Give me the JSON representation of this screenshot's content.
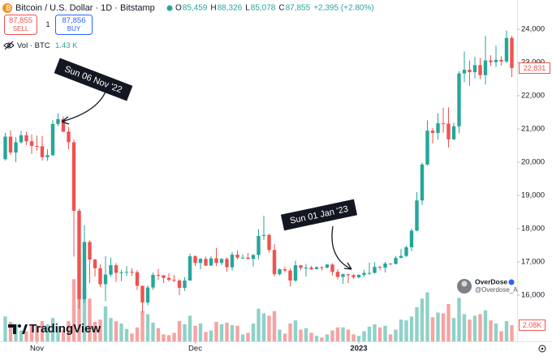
{
  "header": {
    "symbol": "Bitcoin / U.S. Dollar · 1D · Bitstamp",
    "ohlc": [
      {
        "label": "O",
        "value": "85,459"
      },
      {
        "label": "H",
        "value": "88,326"
      },
      {
        "label": "L",
        "value": "85,078"
      },
      {
        "label": "C",
        "value": "87,855"
      }
    ],
    "change": "+2,395 (+2.80%)",
    "sell": {
      "price": "87,855",
      "label": "SELL"
    },
    "spread": "1",
    "buy": {
      "price": "87,856",
      "label": "BUY"
    },
    "volume_label": "Vol · BTC",
    "volume_value": "1.43 K"
  },
  "watermark": "TradingView",
  "author": {
    "name": "OverDose",
    "handle": "@Overdose_AI"
  },
  "chart_data": {
    "type": "candlestick",
    "up_color": "#26a69a",
    "down_color": "#ef5350",
    "volume_up_color": "#8fd1c8",
    "volume_down_color": "#f5a3a1",
    "annotations": [
      "Sun 06 Nov '22",
      "Sun 01 Jan '23"
    ],
    "xlim": [
      -1,
      97
    ],
    "xticks": [
      {
        "value": 6,
        "label": "Nov"
      },
      {
        "value": 36,
        "label": "Dec"
      },
      {
        "value": 67,
        "label": "2023"
      }
    ],
    "ylim": [
      14610,
      24880
    ],
    "yticks": [
      {
        "value": 16000,
        "label": "16,000"
      },
      {
        "value": 17000,
        "label": "17,000"
      },
      {
        "value": 18000,
        "label": "18,000"
      },
      {
        "value": 19000,
        "label": "19,000"
      },
      {
        "value": 20000,
        "label": "20,000"
      },
      {
        "value": 21000,
        "label": "21,000"
      },
      {
        "value": 22000,
        "label": "22,000"
      },
      {
        "value": 23000,
        "label": "23,000"
      },
      {
        "value": 24000,
        "label": "24,000"
      }
    ],
    "grid": false,
    "last_price": {
      "value": 22831,
      "label": "22,831"
    },
    "volume_ylim": [
      0,
      12000
    ],
    "last_volume": {
      "value": 2080,
      "label": "2.08K"
    },
    "open": [
      20090,
      20770,
      20290,
      20600,
      20810,
      20630,
      20490,
      20480,
      20150,
      20210,
      21150,
      21300,
      20920,
      20600,
      18540,
      15880,
      17600,
      17070,
      16810,
      16330,
      16620,
      16900,
      16670,
      16690,
      16700,
      16690,
      16280,
      15780,
      16230,
      16610,
      16600,
      16520,
      16460,
      16440,
      16220,
      16440,
      17170,
      16970,
      17090,
      16890,
      17110,
      16970,
      17090,
      16840,
      17220,
      17130,
      17130,
      17090,
      17210,
      17780,
      17810,
      17360,
      16630,
      16780,
      16740,
      16440,
      16900,
      16820,
      16830,
      16780,
      16840,
      16830,
      16920,
      16700,
      16550,
      16630,
      16600,
      16540,
      16610,
      16670,
      16670,
      16850,
      16830,
      16950,
      16940,
      17120,
      17180,
      17440,
      17940,
      18850,
      19930,
      20950,
      20880,
      21170,
      21160,
      20690,
      21080,
      22670,
      22780,
      22710,
      22920,
      22620,
      23060,
      23010,
      23080,
      23030,
      23740
    ],
    "high": [
      20880,
      20960,
      20750,
      20940,
      20920,
      20840,
      20800,
      20790,
      20390,
      21260,
      21470,
      21380,
      21060,
      20680,
      18600,
      18100,
      17650,
      17090,
      16930,
      17170,
      17130,
      16960,
      16760,
      16870,
      16810,
      16750,
      16290,
      16300,
      16680,
      16790,
      16600,
      16660,
      16610,
      16480,
      16540,
      17250,
      17200,
      17120,
      17160,
      17170,
      17420,
      17110,
      17140,
      17300,
      17350,
      17230,
      17270,
      17240,
      17990,
      18390,
      17850,
      17530,
      16800,
      16860,
      16810,
      17040,
      16900,
      16940,
      16880,
      16870,
      16870,
      16940,
      16960,
      16780,
      16650,
      16630,
      16630,
      16630,
      16760,
      16980,
      16990,
      16880,
      17000,
      16960,
      17180,
      17390,
      17490,
      18000,
      19100,
      19990,
      21260,
      21030,
      21470,
      21640,
      21650,
      21190,
      22740,
      23330,
      23060,
      23170,
      23140,
      23800,
      23220,
      23510,
      23190,
      23960,
      23800
    ],
    "low": [
      20050,
      20220,
      20000,
      20560,
      20520,
      20240,
      20350,
      20050,
      20040,
      20180,
      21080,
      20900,
      20390,
      17160,
      15590,
      15770,
      16360,
      16560,
      16240,
      15820,
      16550,
      16400,
      16420,
      16570,
      16580,
      16160,
      15480,
      15690,
      16160,
      16460,
      16360,
      16410,
      16390,
      16000,
      16130,
      16440,
      16880,
      16780,
      16880,
      16880,
      16880,
      16910,
      16700,
      16740,
      17080,
      17090,
      17070,
      16870,
      17080,
      17660,
      17280,
      16560,
      16590,
      16690,
      16270,
      16400,
      16750,
      16560,
      16760,
      16790,
      16740,
      16800,
      16590,
      16470,
      16340,
      16360,
      16490,
      16500,
      16550,
      16610,
      16650,
      16750,
      16680,
      16910,
      16920,
      17110,
      17150,
      17320,
      17920,
      18710,
      19900,
      20560,
      20680,
      20890,
      20440,
      20660,
      20870,
      22410,
      22300,
      22520,
      22500,
      22340,
      22890,
      22860,
      22910,
      22980,
      22560
    ],
    "close": [
      20770,
      20290,
      20600,
      20810,
      20630,
      20490,
      20480,
      20150,
      20210,
      21150,
      21300,
      20920,
      20600,
      18540,
      15880,
      17600,
      17070,
      16810,
      16330,
      16620,
      16900,
      16670,
      16690,
      16700,
      16690,
      16280,
      15780,
      16230,
      16610,
      16600,
      16520,
      16460,
      16440,
      16220,
      16440,
      17170,
      16970,
      17090,
      16890,
      17110,
      16970,
      17090,
      16840,
      17220,
      17130,
      17130,
      17090,
      17210,
      17780,
      17810,
      17360,
      16630,
      16780,
      16740,
      16440,
      16900,
      16820,
      16830,
      16780,
      16840,
      16830,
      16920,
      16700,
      16550,
      16630,
      16600,
      16540,
      16610,
      16670,
      16670,
      16850,
      16830,
      16950,
      16940,
      17120,
      17180,
      17440,
      17940,
      18850,
      19930,
      20950,
      20880,
      21170,
      21160,
      20690,
      21080,
      22670,
      22780,
      22710,
      22920,
      22620,
      23060,
      23010,
      23080,
      23030,
      23740,
      22831
    ],
    "volume": [
      3200,
      2500,
      2200,
      1400,
      1300,
      2000,
      2100,
      2600,
      2200,
      3000,
      1900,
      1500,
      2600,
      8000,
      11500,
      7000,
      5500,
      2500,
      2800,
      4500,
      3000,
      2600,
      2300,
      1600,
      1000,
      1800,
      3900,
      3500,
      2400,
      1700,
      900,
      800,
      1100,
      2600,
      2200,
      3300,
      2000,
      2300,
      1200,
      1400,
      2500,
      2200,
      2400,
      2100,
      2000,
      900,
      1100,
      2300,
      4200,
      3600,
      3300,
      3900,
      1500,
      1000,
      2300,
      2700,
      1500,
      1700,
      1100,
      700,
      500,
      900,
      1400,
      1800,
      1800,
      1500,
      900,
      700,
      1300,
      1900,
      2200,
      1800,
      2000,
      900,
      1500,
      2800,
      2700,
      3200,
      4400,
      5500,
      6300,
      3100,
      3700,
      3600,
      4800,
      3000,
      5600,
      3500,
      2800,
      3300,
      3500,
      4000,
      2700,
      2300,
      1300,
      2600,
      2080
    ]
  }
}
